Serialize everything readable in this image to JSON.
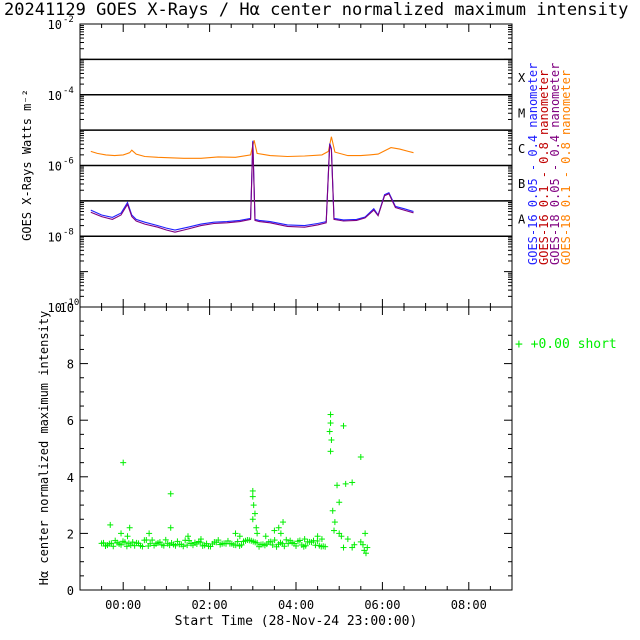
{
  "title": "20241129 GOES X-Rays / Hα center normalized maximum intensity",
  "colors": {
    "goes16_short": "#2020ff",
    "goes16_long": "#c00000",
    "goes18_short": "#800080",
    "goes18_long": "#ff8000",
    "halpha": "#00ee00"
  },
  "chart_data": [
    {
      "type": "line",
      "ylabel": "GOES X-Rays Watts m⁻²",
      "ylim": [
        1e-10,
        0.01
      ],
      "log_y": true,
      "y_ticks": [
        {
          "exp": -2,
          "base": "10",
          "sup": "-2"
        },
        {
          "exp": -4,
          "base": "10",
          "sup": "-4"
        },
        {
          "exp": -6,
          "base": "10",
          "sup": "-6"
        },
        {
          "exp": -8,
          "base": "10",
          "sup": "-8"
        },
        {
          "exp": -10,
          "base": "10",
          "sup": "-10"
        }
      ],
      "grid_lines_exp": [
        -3,
        -4,
        -5,
        -6,
        -7,
        -8
      ],
      "flare_classes": [
        {
          "label": "X",
          "exp": -3.5
        },
        {
          "label": "M",
          "exp": -4.5
        },
        {
          "label": "C",
          "exp": -5.5
        },
        {
          "label": "B",
          "exp": -6.5
        },
        {
          "label": "A",
          "exp": -7.5
        }
      ],
      "legend": [
        {
          "text": "GOES-16  0.05 - 0.4 nanometer",
          "color": "#2020ff"
        },
        {
          "text": "GOES-16  0.1 - 0.8 nanometer",
          "color": "#c00000"
        },
        {
          "text": "GOES-18  0.05 - 0.4 nanometer",
          "color": "#800080"
        },
        {
          "text": "GOES-18  0.1 - 0.8 nanometer",
          "color": "#ff8000"
        }
      ],
      "series": [
        {
          "name": "GOES-18  0.1 - 0.8 nanometer",
          "color": "#ff8000",
          "x_hours": [
            -0.75,
            -0.6,
            -0.4,
            -0.2,
            0.0,
            0.15,
            0.2,
            0.3,
            0.5,
            0.8,
            1.1,
            1.4,
            1.8,
            2.2,
            2.6,
            2.95,
            3.03,
            3.1,
            3.4,
            3.8,
            4.2,
            4.6,
            4.75,
            4.82,
            4.9,
            5.2,
            5.5,
            5.7,
            5.9,
            6.1,
            6.2,
            6.4,
            6.6,
            6.72
          ],
          "y": [
            2.5e-06,
            2.2e-06,
            2e-06,
            1.9e-06,
            2e-06,
            2.3e-06,
            2.7e-06,
            2.1e-06,
            1.8e-06,
            1.7e-06,
            1.65e-06,
            1.6e-06,
            1.6e-06,
            1.75e-06,
            1.7e-06,
            2e-06,
            5.2e-06,
            2.2e-06,
            1.9e-06,
            1.8e-06,
            1.85e-06,
            2e-06,
            2.5e-06,
            6.5e-06,
            2.4e-06,
            1.9e-06,
            1.9e-06,
            2e-06,
            2.1e-06,
            2.8e-06,
            3.2e-06,
            2.9e-06,
            2.5e-06,
            2.3e-06
          ]
        },
        {
          "name": "GOES-16  0.05 - 0.4 nanometer",
          "color": "#2020ff",
          "x_hours": [
            -0.75,
            -0.5,
            -0.25,
            -0.05,
            0.1,
            0.2,
            0.3,
            0.5,
            0.8,
            1.0,
            1.2,
            1.5,
            1.8,
            2.1,
            2.4,
            2.7,
            2.95,
            3.0,
            3.05,
            3.15,
            3.4,
            3.8,
            4.2,
            4.5,
            4.7,
            4.78,
            4.82,
            4.88,
            5.1,
            5.4,
            5.6,
            5.8,
            5.9,
            6.05,
            6.15,
            6.3,
            6.5,
            6.72
          ],
          "y": [
            5.5e-08,
            4e-08,
            3.4e-08,
            4.5e-08,
            9e-08,
            4e-08,
            3e-08,
            2.5e-08,
            2e-08,
            1.7e-08,
            1.5e-08,
            1.8e-08,
            2.2e-08,
            2.5e-08,
            2.6e-08,
            2.8e-08,
            3.2e-08,
            5e-06,
            3e-08,
            2.8e-08,
            2.6e-08,
            2.1e-08,
            2e-08,
            2.3e-08,
            2.6e-08,
            4.2e-06,
            3e-06,
            3.2e-08,
            2.9e-08,
            3e-08,
            3.5e-08,
            6e-08,
            4e-08,
            1.5e-07,
            1.7e-07,
            7e-08,
            6e-08,
            5e-08
          ]
        },
        {
          "name": "GOES-18  0.05 - 0.4 nanometer",
          "color": "#800080",
          "x_hours": [
            -0.75,
            -0.5,
            -0.25,
            -0.05,
            0.1,
            0.2,
            0.3,
            0.5,
            0.8,
            1.0,
            1.2,
            1.5,
            1.8,
            2.1,
            2.4,
            2.7,
            2.95,
            3.0,
            3.05,
            3.15,
            3.4,
            3.8,
            4.2,
            4.5,
            4.7,
            4.78,
            4.82,
            4.88,
            5.1,
            5.4,
            5.6,
            5.8,
            5.9,
            6.05,
            6.15,
            6.3,
            6.5,
            6.72
          ],
          "y": [
            4.8e-08,
            3.6e-08,
            3e-08,
            4e-08,
            8e-08,
            3.6e-08,
            2.7e-08,
            2.2e-08,
            1.8e-08,
            1.5e-08,
            1.3e-08,
            1.6e-08,
            2e-08,
            2.3e-08,
            2.4e-08,
            2.6e-08,
            3e-08,
            4.6e-06,
            2.8e-08,
            2.6e-08,
            2.4e-08,
            1.9e-08,
            1.8e-08,
            2.1e-08,
            2.4e-08,
            3.9e-06,
            2.8e-06,
            3e-08,
            2.7e-08,
            2.8e-08,
            3.3e-08,
            5.5e-08,
            3.8e-08,
            1.4e-07,
            1.6e-07,
            6.5e-08,
            5.5e-08,
            4.6e-08
          ]
        }
      ]
    },
    {
      "type": "scatter",
      "ylabel": "Hα center normalized maximum intensity",
      "xlabel": "Start Time (28-Nov-24 23:00:00)",
      "ylim": [
        0,
        10
      ],
      "xlim_hours": [
        -1.0,
        9.0
      ],
      "y_ticks": [
        "0",
        "2",
        "4",
        "6",
        "8",
        "10"
      ],
      "x_ticks": [
        {
          "h": 0,
          "label": "00:00"
        },
        {
          "h": 2,
          "label": "02:00"
        },
        {
          "h": 4,
          "label": "04:00"
        },
        {
          "h": 6,
          "label": "06:00"
        },
        {
          "h": 8,
          "label": "08:00"
        }
      ],
      "legend": [
        {
          "text": "+  +0.00 short",
          "color": "#00ee00"
        }
      ],
      "baseline": {
        "x_start": -0.5,
        "x_end": 4.7,
        "y": 1.65
      },
      "points": [
        [
          -0.3,
          2.3
        ],
        [
          0.0,
          4.5
        ],
        [
          -0.05,
          2.0
        ],
        [
          0.15,
          2.2
        ],
        [
          0.1,
          1.9
        ],
        [
          0.6,
          2.0
        ],
        [
          1.1,
          3.4
        ],
        [
          1.1,
          2.2
        ],
        [
          1.5,
          1.9
        ],
        [
          1.8,
          1.8
        ],
        [
          2.6,
          2.0
        ],
        [
          2.7,
          1.9
        ],
        [
          3.0,
          3.5
        ],
        [
          3.0,
          3.3
        ],
        [
          3.02,
          3.0
        ],
        [
          3.05,
          2.7
        ],
        [
          3.0,
          2.5
        ],
        [
          3.08,
          2.2
        ],
        [
          3.1,
          2.0
        ],
        [
          3.3,
          1.9
        ],
        [
          3.5,
          2.1
        ],
        [
          3.6,
          2.2
        ],
        [
          3.7,
          2.4
        ],
        [
          3.65,
          2.0
        ],
        [
          4.2,
          1.8
        ],
        [
          4.5,
          1.9
        ],
        [
          4.6,
          1.8
        ],
        [
          4.8,
          6.2
        ],
        [
          4.8,
          5.9
        ],
        [
          4.78,
          5.6
        ],
        [
          4.82,
          5.3
        ],
        [
          4.8,
          4.9
        ],
        [
          4.85,
          2.8
        ],
        [
          4.9,
          2.4
        ],
        [
          4.88,
          2.1
        ],
        [
          4.95,
          3.7
        ],
        [
          5.0,
          3.1
        ],
        [
          5.1,
          5.8
        ],
        [
          5.15,
          3.75
        ],
        [
          5.3,
          3.8
        ],
        [
          5.0,
          2.0
        ],
        [
          5.05,
          1.9
        ],
        [
          5.2,
          1.8
        ],
        [
          5.3,
          1.5
        ],
        [
          5.35,
          1.6
        ],
        [
          5.1,
          1.5
        ],
        [
          5.5,
          4.7
        ],
        [
          5.55,
          1.6
        ],
        [
          5.6,
          2.0
        ],
        [
          5.65,
          1.5
        ],
        [
          5.62,
          1.3
        ],
        [
          5.58,
          1.4
        ],
        [
          5.5,
          1.7
        ]
      ]
    }
  ]
}
